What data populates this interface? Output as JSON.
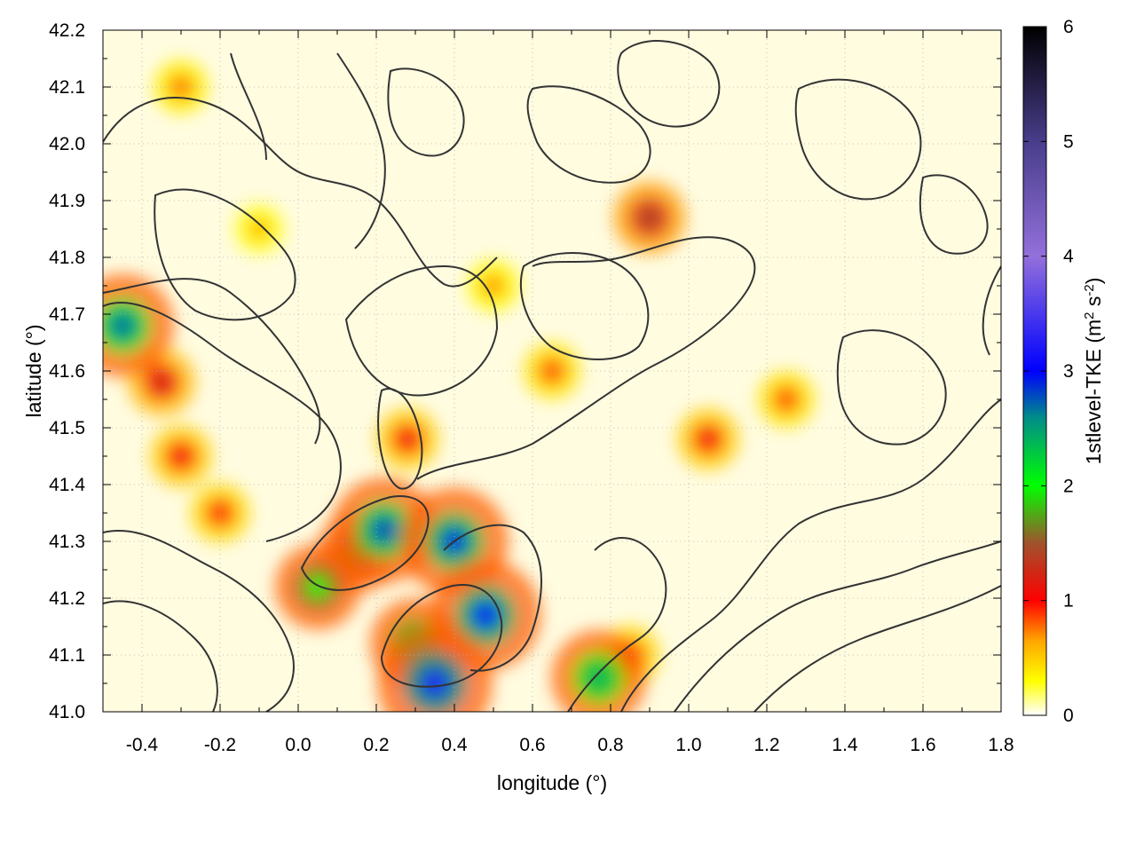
{
  "chart_data": {
    "type": "heatmap",
    "title": "",
    "xlabel": "longitude (°)",
    "ylabel": "latitude (°)",
    "colorbar_label": "1stlevel-TKE (m² s⁻²)",
    "colorbar_label_main": "1stlevel-TKE (m",
    "colorbar_label_sup1": "2",
    "colorbar_label_mid": " s",
    "colorbar_label_sup2": "-2",
    "colorbar_label_end": ")",
    "xlim": [
      -0.5,
      1.8
    ],
    "ylim": [
      41.0,
      42.2
    ],
    "clim": [
      0,
      6
    ],
    "x_ticks": [
      "-0.4",
      "-0.2",
      "0.0",
      "0.2",
      "0.4",
      "0.6",
      "0.8",
      "1.0",
      "1.2",
      "1.4",
      "1.6",
      "1.8"
    ],
    "x_tick_values": [
      -0.4,
      -0.2,
      0.0,
      0.2,
      0.4,
      0.6,
      0.8,
      1.0,
      1.2,
      1.4,
      1.6,
      1.8
    ],
    "y_ticks": [
      "41.0",
      "41.1",
      "41.2",
      "41.3",
      "41.4",
      "41.5",
      "41.6",
      "41.7",
      "41.8",
      "41.9",
      "42.0",
      "42.1",
      "42.2"
    ],
    "y_tick_values": [
      41.0,
      41.1,
      41.2,
      41.3,
      41.4,
      41.5,
      41.6,
      41.7,
      41.8,
      41.9,
      42.0,
      42.1,
      42.2
    ],
    "colorbar_ticks": [
      "0",
      "1",
      "2",
      "3",
      "4",
      "5",
      "6"
    ],
    "colorbar_tick_values": [
      0,
      1,
      2,
      3,
      4,
      5,
      6
    ],
    "colormap": [
      {
        "value": 0.0,
        "color": "#ffffff"
      },
      {
        "value": 0.3,
        "color": "#ffff00"
      },
      {
        "value": 0.65,
        "color": "#ffa500"
      },
      {
        "value": 1.0,
        "color": "#ff0000"
      },
      {
        "value": 1.5,
        "color": "#a0522d"
      },
      {
        "value": 2.0,
        "color": "#00ff00"
      },
      {
        "value": 2.6,
        "color": "#008b8b"
      },
      {
        "value": 3.0,
        "color": "#0000ff"
      },
      {
        "value": 4.0,
        "color": "#9370db"
      },
      {
        "value": 5.0,
        "color": "#483d8b"
      },
      {
        "value": 6.0,
        "color": "#000000"
      }
    ],
    "grid": true,
    "contour_color": "#333333",
    "tke_hotspots": [
      {
        "lon": -0.45,
        "lat": 41.68,
        "tke": 2.7
      },
      {
        "lon": -0.35,
        "lat": 41.58,
        "tke": 1.3
      },
      {
        "lon": -0.3,
        "lat": 41.45,
        "tke": 1.1
      },
      {
        "lon": -0.2,
        "lat": 41.35,
        "tke": 1.0
      },
      {
        "lon": 0.05,
        "lat": 41.22,
        "tke": 2.0
      },
      {
        "lon": 0.15,
        "lat": 41.28,
        "tke": 1.8
      },
      {
        "lon": 0.22,
        "lat": 41.32,
        "tke": 2.8
      },
      {
        "lon": 0.3,
        "lat": 41.12,
        "tke": 2.2
      },
      {
        "lon": 0.35,
        "lat": 41.05,
        "tke": 3.2
      },
      {
        "lon": 0.48,
        "lat": 41.17,
        "tke": 3.0
      },
      {
        "lon": 0.4,
        "lat": 41.3,
        "tke": 2.9
      },
      {
        "lon": 0.28,
        "lat": 41.48,
        "tke": 1.1
      },
      {
        "lon": 0.77,
        "lat": 41.06,
        "tke": 2.4
      },
      {
        "lon": 0.85,
        "lat": 41.1,
        "tke": 1.0
      },
      {
        "lon": 1.05,
        "lat": 41.48,
        "tke": 1.1
      },
      {
        "lon": 1.25,
        "lat": 41.55,
        "tke": 0.9
      },
      {
        "lon": 0.9,
        "lat": 41.87,
        "tke": 1.5
      },
      {
        "lon": 0.65,
        "lat": 41.6,
        "tke": 0.9
      },
      {
        "lon": -0.3,
        "lat": 42.1,
        "tke": 0.8
      },
      {
        "lon": -0.1,
        "lat": 41.85,
        "tke": 0.6
      },
      {
        "lon": 0.5,
        "lat": 41.75,
        "tke": 0.7
      }
    ]
  }
}
